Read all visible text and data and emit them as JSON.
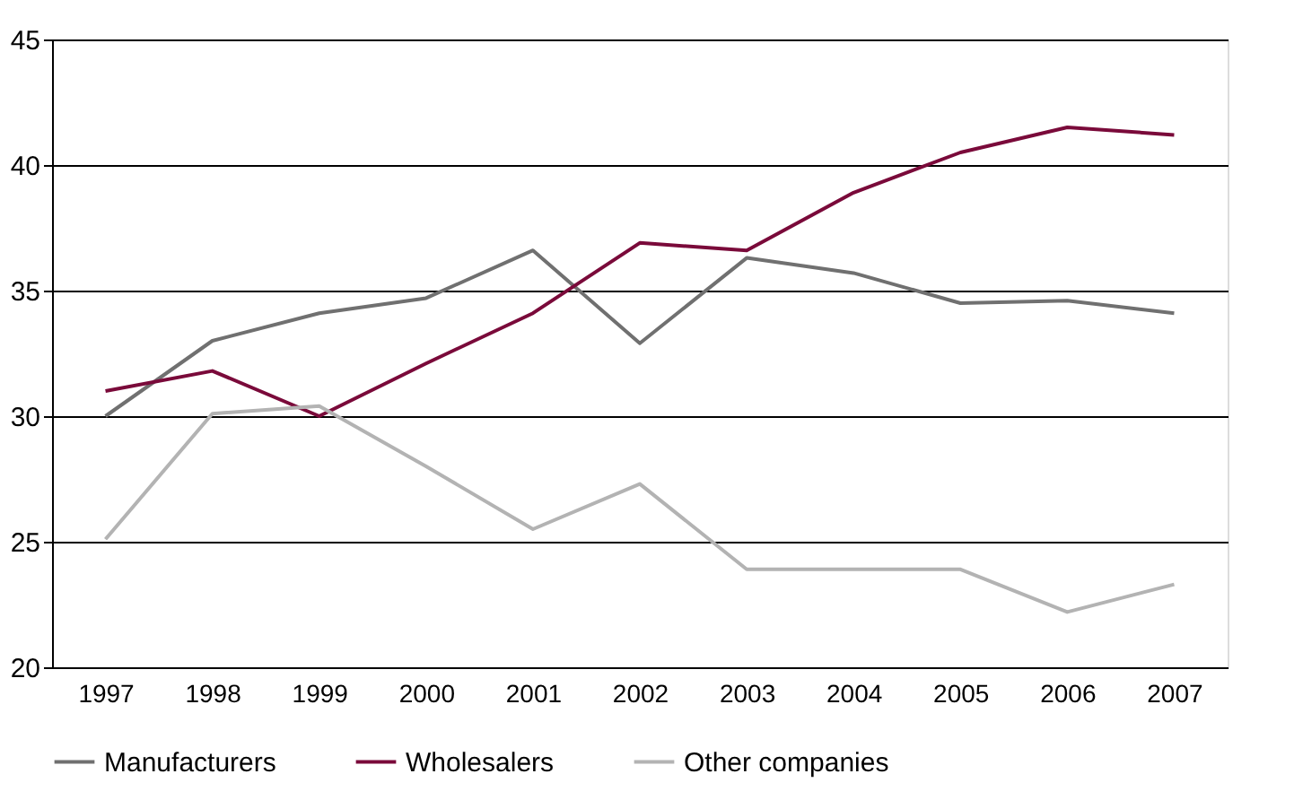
{
  "chart_data": {
    "type": "line",
    "categories": [
      "1997",
      "1998",
      "1999",
      "2000",
      "2001",
      "2002",
      "2003",
      "2004",
      "2005",
      "2006",
      "2007"
    ],
    "series": [
      {
        "name": "Manufacturers",
        "color": "#707070",
        "values": [
          30.0,
          33.0,
          34.1,
          34.7,
          36.6,
          32.9,
          36.3,
          35.7,
          34.5,
          34.6,
          34.1
        ]
      },
      {
        "name": "Wholesalers",
        "color": "#7a0a3a",
        "values": [
          31.0,
          31.8,
          30.0,
          32.1,
          34.1,
          36.9,
          36.6,
          38.9,
          40.5,
          41.5,
          41.2
        ]
      },
      {
        "name": "Other companies",
        "color": "#b3b3b3",
        "values": [
          25.1,
          30.1,
          30.4,
          28.0,
          25.5,
          27.3,
          23.9,
          23.9,
          23.9,
          22.2,
          23.3
        ]
      }
    ],
    "ylim": [
      20,
      45
    ],
    "yticks": [
      20,
      25,
      30,
      35,
      40,
      45
    ],
    "grid": "y",
    "legend": "bottom",
    "marker": "none",
    "line_style": "solid"
  }
}
